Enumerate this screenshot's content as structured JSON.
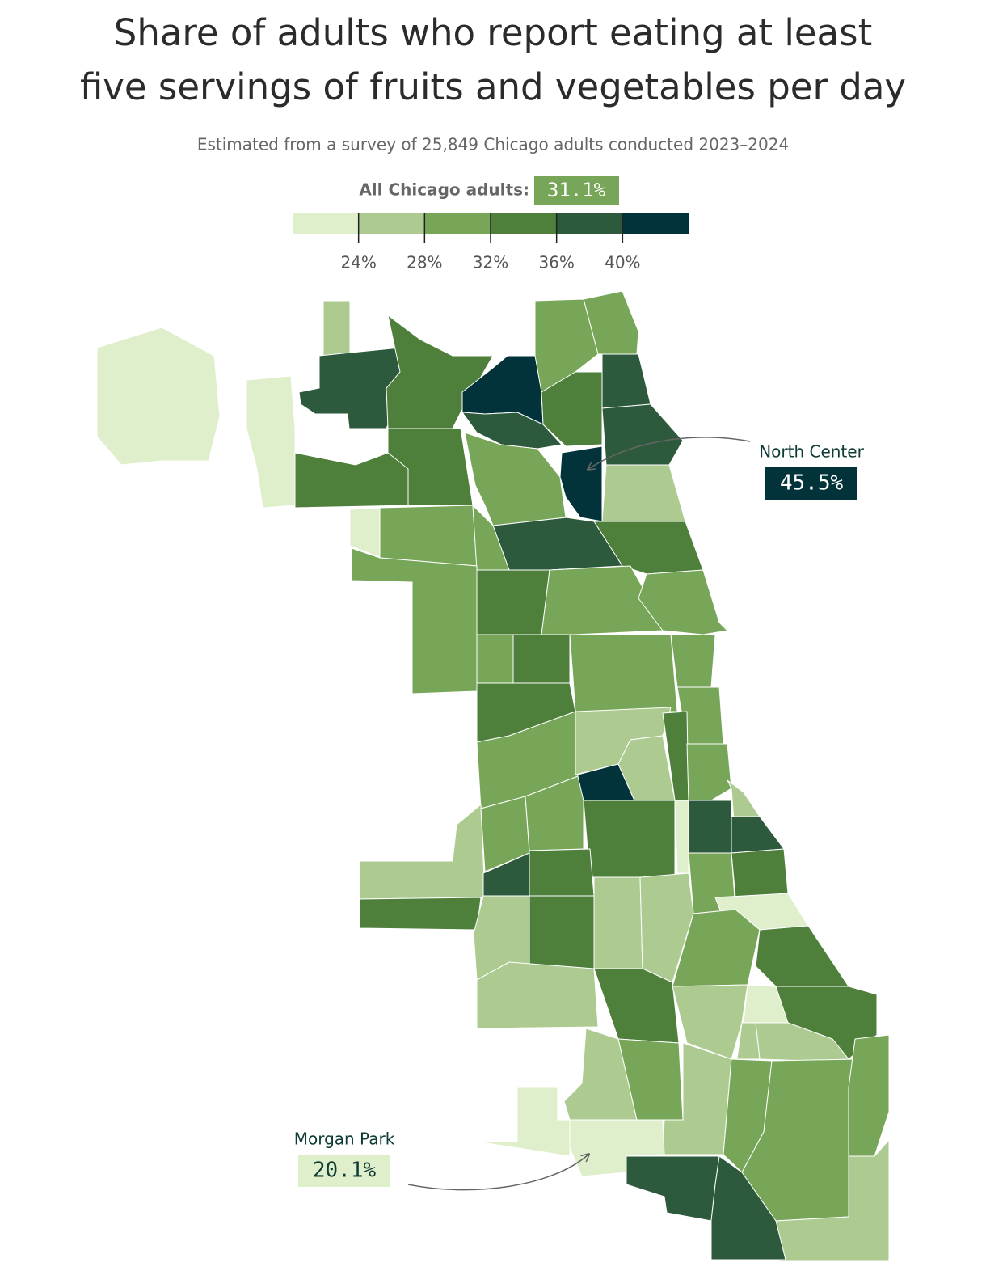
{
  "chart_data": {
    "type": "choropleth",
    "title": [
      "Share of adults who report eating at least",
      "five servings of fruits and vegetables per day"
    ],
    "subtitle": "Estimated from a survey of 25,849 Chicago adults conducted 2023–2024",
    "overall": {
      "name": "All Chicago adults:",
      "value": 31.1,
      "label": "31.1%"
    },
    "legend": {
      "lim": [
        20,
        44
      ],
      "ticks": [
        {
          "value": 24,
          "label": "24%"
        },
        {
          "value": 28,
          "label": "28%"
        },
        {
          "value": 32,
          "label": "32%"
        },
        {
          "value": 36,
          "label": "36%"
        },
        {
          "value": 40,
          "label": "40%"
        }
      ],
      "colors": [
        "#e0efcb",
        "#adcb91",
        "#77a659",
        "#4e7f3b",
        "#2d5a3c",
        "#03333a"
      ]
    },
    "annotations": [
      {
        "name": "North Center",
        "value": 45.5,
        "label": "45.5%"
      },
      {
        "name": "Morgan Park",
        "value": 20.1,
        "label": "20.1%"
      }
    ]
  }
}
